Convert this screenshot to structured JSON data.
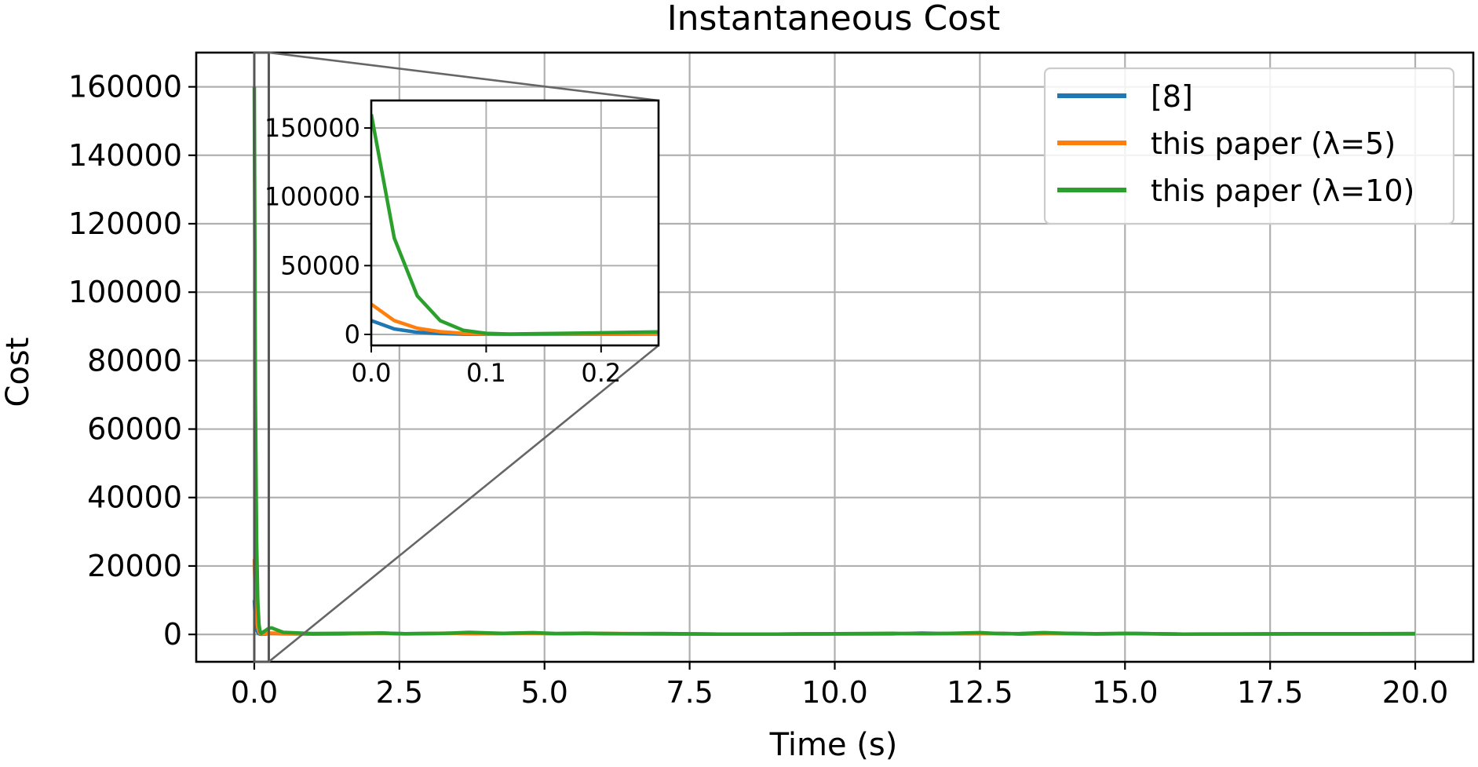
{
  "chart_data": {
    "type": "line",
    "title": "Instantaneous Cost",
    "xlabel": "Time (s)",
    "ylabel": "Cost",
    "xlim": [
      -1.0,
      21.0
    ],
    "ylim": [
      -8000,
      170000
    ],
    "xticks": [
      0.0,
      2.5,
      5.0,
      7.5,
      10.0,
      12.5,
      15.0,
      17.5,
      20.0
    ],
    "xtick_labels": [
      "0.0",
      "2.5",
      "5.0",
      "7.5",
      "10.0",
      "12.5",
      "15.0",
      "17.5",
      "20.0"
    ],
    "yticks": [
      0,
      20000,
      40000,
      60000,
      80000,
      100000,
      120000,
      140000,
      160000
    ],
    "ytick_labels": [
      "0",
      "20000",
      "40000",
      "60000",
      "80000",
      "100000",
      "120000",
      "140000",
      "160000"
    ],
    "grid": true,
    "legend_position": "upper-right",
    "series": [
      {
        "name": "[8]",
        "color": "#1f77b4",
        "x": [
          0.0,
          0.02,
          0.04,
          0.06,
          0.08,
          0.1,
          0.12,
          0.2,
          0.25,
          0.5,
          1.0,
          1.5,
          2.2,
          2.6,
          3.3,
          3.8,
          4.3,
          4.8,
          5.2,
          5.7,
          6.3,
          7.0,
          8.0,
          9.0,
          10.0,
          11.0,
          11.5,
          12.0,
          12.5,
          12.9,
          13.2,
          13.6,
          14.0,
          14.5,
          15.2,
          16.0,
          17.0,
          18.0,
          19.0,
          20.0
        ],
        "y": [
          10000,
          4000,
          1500,
          600,
          200,
          80,
          50,
          100,
          300,
          200,
          100,
          150,
          400,
          200,
          350,
          250,
          300,
          400,
          200,
          300,
          200,
          150,
          100,
          100,
          150,
          150,
          400,
          200,
          250,
          300,
          100,
          250,
          300,
          150,
          250,
          100,
          100,
          150,
          150,
          150
        ]
      },
      {
        "name": "this paper (λ=5)",
        "color": "#ff7f0e",
        "x": [
          0.0,
          0.02,
          0.04,
          0.06,
          0.08,
          0.1,
          0.12,
          0.2,
          0.25,
          0.5,
          1.0,
          1.5,
          2.2,
          2.6,
          3.3,
          3.8,
          4.3,
          4.8,
          5.2,
          5.7,
          6.3,
          7.0,
          8.0,
          9.0,
          10.0,
          11.0,
          11.5,
          12.0,
          12.5,
          12.9,
          13.2,
          13.6,
          14.0,
          14.5,
          15.2,
          16.0,
          17.0,
          18.0,
          19.0,
          20.0
        ],
        "y": [
          22000,
          10000,
          4500,
          2000,
          800,
          300,
          150,
          200,
          400,
          300,
          150,
          150,
          300,
          150,
          350,
          300,
          250,
          350,
          200,
          350,
          250,
          150,
          100,
          100,
          150,
          200,
          250,
          200,
          300,
          250,
          150,
          300,
          200,
          150,
          200,
          100,
          100,
          150,
          150,
          150
        ]
      },
      {
        "name": "this paper (λ=10)",
        "color": "#2ca02c",
        "x": [
          0.0,
          0.02,
          0.04,
          0.06,
          0.08,
          0.1,
          0.12,
          0.2,
          0.25,
          0.3,
          0.5,
          1.0,
          1.5,
          2.2,
          2.6,
          3.3,
          3.7,
          4.3,
          4.8,
          5.2,
          5.7,
          6.3,
          7.0,
          8.0,
          9.0,
          10.0,
          11.0,
          11.6,
          12.0,
          12.5,
          12.9,
          13.2,
          13.6,
          14.0,
          14.5,
          15.0,
          16.0,
          17.0,
          18.0,
          19.0,
          20.0
        ],
        "y": [
          160000,
          70000,
          28000,
          10000,
          3000,
          800,
          300,
          1200,
          1800,
          1900,
          600,
          250,
          300,
          400,
          200,
          300,
          600,
          300,
          500,
          250,
          350,
          200,
          250,
          100,
          100,
          200,
          300,
          200,
          300,
          500,
          200,
          250,
          500,
          300,
          200,
          300,
          100,
          150,
          200,
          200,
          250
        ]
      }
    ],
    "inset": {
      "xlim": [
        0.0,
        0.25
      ],
      "ylim": [
        -8000,
        170000
      ],
      "xticks": [
        0.0,
        0.1,
        0.2
      ],
      "xtick_labels": [
        "0.0",
        "0.1",
        "0.2"
      ],
      "yticks": [
        0,
        50000,
        100000,
        150000
      ],
      "ytick_labels": [
        "0",
        "50000",
        "100000",
        "150000"
      ],
      "grid": true
    }
  }
}
